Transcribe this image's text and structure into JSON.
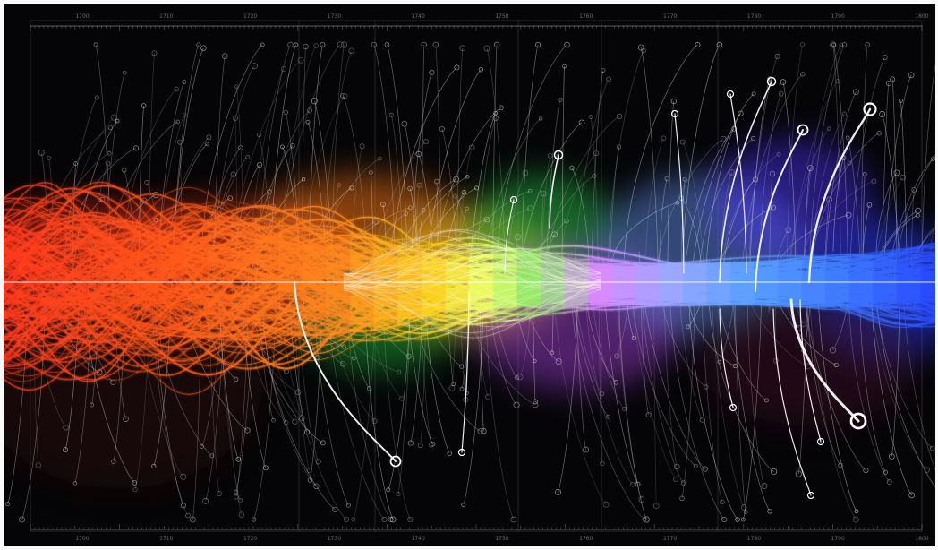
{
  "timeline": {
    "top_ticks": [
      "1700",
      "1710",
      "1720",
      "1730",
      "1740",
      "1750",
      "1760",
      "1770",
      "1780",
      "1790",
      "1800"
    ],
    "bottom_ticks": [
      "1700",
      "1710",
      "1720",
      "1730",
      "1740",
      "1750",
      "1760",
      "1770",
      "1780",
      "1790",
      "1800"
    ]
  },
  "colors": {
    "background": "#050507",
    "frame": "#fafafa",
    "spectrum": [
      "#ff3a1e",
      "#ff7a18",
      "#ffd21f",
      "#e9ff6a",
      "#30b63f",
      "#b85cff",
      "#5aa0ff",
      "#2a64ff",
      "#5f2bff"
    ],
    "branches": "#d8d8d8",
    "highlight": "#ffffff"
  }
}
